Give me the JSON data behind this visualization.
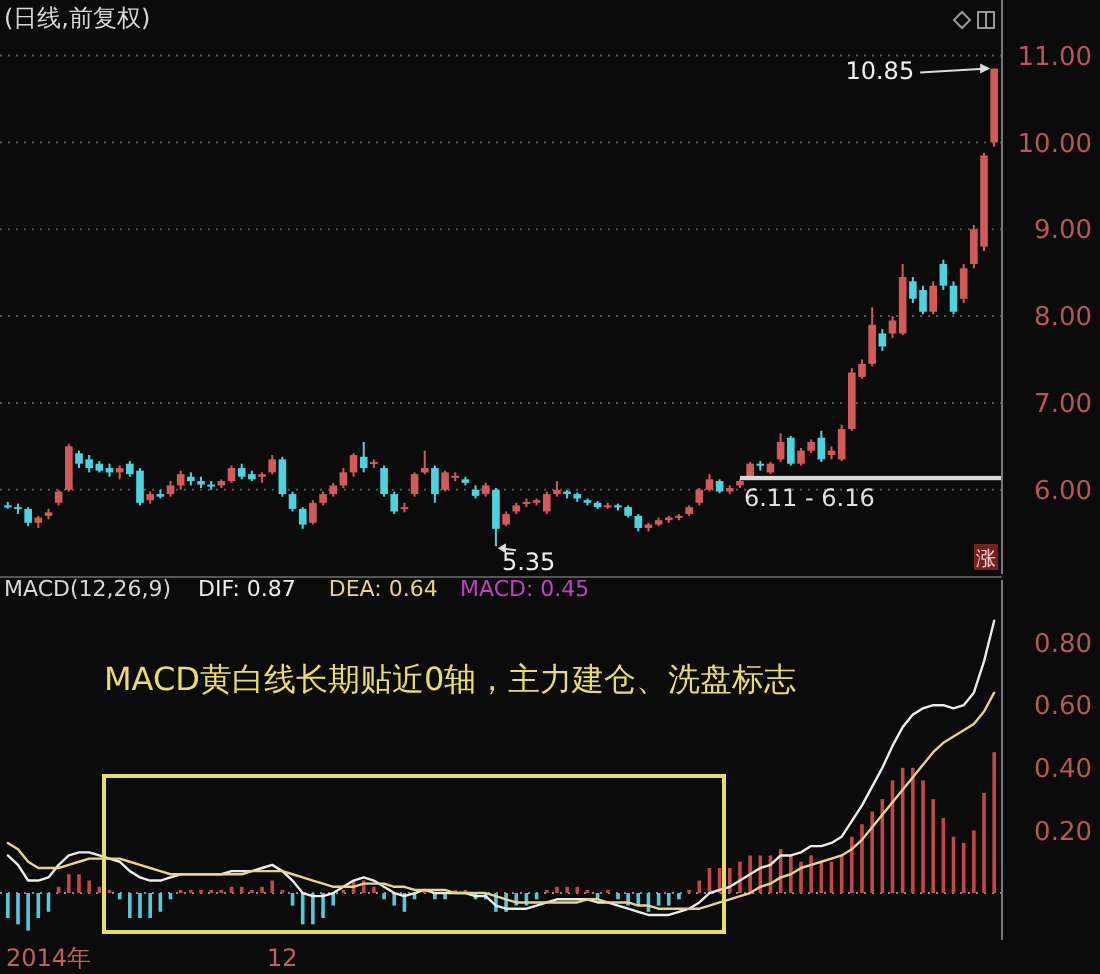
{
  "chart_data": [
    {
      "type": "candlestick",
      "title": "(日线,前复权)",
      "tick_labels": "y",
      "grid": "y",
      "categories": [
        null,
        null,
        null,
        null,
        null,
        null,
        null,
        null,
        null,
        null,
        null,
        null,
        null,
        null,
        null,
        null,
        null,
        null,
        null,
        null,
        null,
        null,
        null,
        null,
        null,
        null,
        null,
        null,
        null,
        null,
        null,
        null,
        null,
        null,
        null,
        null,
        null,
        null,
        null,
        null,
        null,
        null,
        null,
        null,
        null,
        null,
        null,
        null,
        null,
        null,
        null,
        null,
        null,
        null,
        null,
        null,
        null,
        null,
        null,
        null,
        null,
        null,
        null,
        null,
        null,
        null,
        null,
        null,
        null,
        null,
        null,
        null,
        null,
        null,
        null,
        null,
        null,
        null,
        null,
        null,
        null,
        null,
        null,
        null,
        null,
        null,
        null,
        null,
        null,
        null,
        null,
        null,
        null,
        null,
        null,
        null,
        null,
        null
      ],
      "ohlc": [
        [
          5.82,
          5.86,
          5.78,
          5.8
        ],
        [
          5.8,
          5.84,
          5.72,
          5.78
        ],
        [
          5.78,
          5.8,
          5.58,
          5.62
        ],
        [
          5.62,
          5.7,
          5.56,
          5.68
        ],
        [
          5.7,
          5.78,
          5.66,
          5.74
        ],
        [
          5.85,
          6.0,
          5.82,
          5.98
        ],
        [
          6.0,
          6.53,
          5.98,
          6.5
        ],
        [
          6.42,
          6.45,
          6.25,
          6.3
        ],
        [
          6.35,
          6.4,
          6.2,
          6.25
        ],
        [
          6.3,
          6.33,
          6.2,
          6.22
        ],
        [
          6.25,
          6.3,
          6.15,
          6.2
        ],
        [
          6.2,
          6.28,
          6.12,
          6.25
        ],
        [
          6.3,
          6.33,
          6.15,
          6.18
        ],
        [
          6.22,
          6.25,
          5.82,
          5.85
        ],
        [
          5.88,
          5.98,
          5.84,
          5.95
        ],
        [
          5.95,
          6.0,
          5.9,
          5.92
        ],
        [
          5.95,
          6.1,
          5.92,
          6.05
        ],
        [
          6.05,
          6.22,
          6.0,
          6.18
        ],
        [
          6.15,
          6.2,
          6.05,
          6.1
        ],
        [
          6.1,
          6.15,
          6.02,
          6.06
        ],
        [
          6.06,
          6.1,
          6.0,
          6.04
        ],
        [
          6.05,
          6.12,
          6.02,
          6.1
        ],
        [
          6.1,
          6.28,
          6.08,
          6.25
        ],
        [
          6.25,
          6.3,
          6.12,
          6.15
        ],
        [
          6.18,
          6.22,
          6.1,
          6.12
        ],
        [
          6.15,
          6.2,
          6.08,
          6.18
        ],
        [
          6.2,
          6.4,
          6.18,
          6.35
        ],
        [
          6.35,
          6.38,
          5.92,
          5.95
        ],
        [
          5.95,
          5.98,
          5.75,
          5.78
        ],
        [
          5.78,
          5.8,
          5.55,
          5.6
        ],
        [
          5.62,
          5.88,
          5.6,
          5.85
        ],
        [
          5.85,
          5.98,
          5.82,
          5.95
        ],
        [
          5.95,
          6.08,
          5.92,
          6.05
        ],
        [
          6.05,
          6.25,
          6.02,
          6.2
        ],
        [
          6.2,
          6.42,
          6.15,
          6.4
        ],
        [
          6.38,
          6.55,
          6.2,
          6.25
        ],
        [
          6.3,
          6.35,
          6.25,
          6.32
        ],
        [
          6.25,
          6.28,
          5.92,
          5.95
        ],
        [
          5.95,
          5.98,
          5.72,
          5.75
        ],
        [
          5.78,
          5.85,
          5.74,
          5.8
        ],
        [
          5.95,
          6.2,
          5.92,
          6.18
        ],
        [
          6.2,
          6.45,
          6.18,
          6.25
        ],
        [
          6.25,
          6.28,
          5.85,
          5.95
        ],
        [
          6.0,
          6.22,
          5.98,
          6.2
        ],
        [
          6.15,
          6.2,
          6.1,
          6.16
        ],
        [
          6.12,
          6.15,
          6.05,
          6.08
        ],
        [
          6.0,
          6.05,
          5.9,
          5.93
        ],
        [
          5.95,
          6.08,
          5.92,
          6.05
        ],
        [
          6.0,
          6.02,
          5.35,
          5.55
        ],
        [
          5.6,
          5.75,
          5.58,
          5.72
        ],
        [
          5.75,
          5.85,
          5.72,
          5.82
        ],
        [
          5.85,
          5.9,
          5.8,
          5.86
        ],
        [
          5.85,
          5.9,
          5.82,
          5.88
        ],
        [
          5.75,
          5.98,
          5.72,
          5.95
        ],
        [
          5.95,
          6.1,
          5.92,
          6.0
        ],
        [
          5.98,
          6.0,
          5.9,
          5.95
        ],
        [
          5.95,
          5.97,
          5.86,
          5.9
        ],
        [
          5.88,
          5.9,
          5.82,
          5.85
        ],
        [
          5.85,
          5.87,
          5.78,
          5.8
        ],
        [
          5.8,
          5.85,
          5.78,
          5.82
        ],
        [
          5.82,
          5.84,
          5.76,
          5.8
        ],
        [
          5.8,
          5.82,
          5.68,
          5.7
        ],
        [
          5.7,
          5.72,
          5.52,
          5.56
        ],
        [
          5.56,
          5.62,
          5.52,
          5.6
        ],
        [
          5.6,
          5.68,
          5.58,
          5.65
        ],
        [
          5.65,
          5.7,
          5.62,
          5.68
        ],
        [
          5.68,
          5.72,
          5.65,
          5.7
        ],
        [
          5.72,
          5.82,
          5.7,
          5.8
        ],
        [
          5.85,
          6.02,
          5.82,
          6.0
        ],
        [
          6.0,
          6.18,
          5.98,
          6.12
        ],
        [
          6.1,
          6.12,
          5.96,
          5.98
        ],
        [
          5.98,
          6.05,
          5.95,
          6.02
        ],
        [
          6.05,
          6.12,
          6.02,
          6.1
        ],
        [
          6.15,
          6.32,
          6.12,
          6.3
        ],
        [
          6.3,
          6.33,
          6.22,
          6.28
        ],
        [
          6.2,
          6.32,
          6.18,
          6.3
        ],
        [
          6.35,
          6.65,
          6.32,
          6.55
        ],
        [
          6.6,
          6.62,
          6.28,
          6.3
        ],
        [
          6.3,
          6.48,
          6.28,
          6.45
        ],
        [
          6.45,
          6.58,
          6.42,
          6.55
        ],
        [
          6.6,
          6.68,
          6.32,
          6.35
        ],
        [
          6.4,
          6.5,
          6.35,
          6.45
        ],
        [
          6.35,
          6.75,
          6.33,
          6.7
        ],
        [
          6.7,
          7.4,
          6.68,
          7.35
        ],
        [
          7.3,
          7.5,
          7.28,
          7.45
        ],
        [
          7.45,
          8.1,
          7.42,
          7.9
        ],
        [
          7.8,
          7.85,
          7.6,
          7.65
        ],
        [
          7.8,
          8.0,
          7.75,
          7.95
        ],
        [
          7.8,
          8.6,
          7.78,
          8.45
        ],
        [
          8.4,
          8.45,
          8.15,
          8.2
        ],
        [
          8.3,
          8.35,
          8.02,
          8.05
        ],
        [
          8.05,
          8.4,
          8.02,
          8.35
        ],
        [
          8.6,
          8.65,
          8.3,
          8.35
        ],
        [
          8.35,
          8.4,
          8.02,
          8.05
        ],
        [
          8.2,
          8.6,
          8.15,
          8.55
        ],
        [
          8.6,
          9.05,
          8.55,
          9.0
        ],
        [
          8.8,
          9.88,
          8.75,
          9.85
        ],
        [
          10.0,
          10.85,
          9.95,
          10.85
        ]
      ],
      "colors": [
        "#4fd2e0",
        "#4fd2e0",
        "#4fd2e0",
        "#d25a5a",
        "#d25a5a",
        "#d25a5a",
        "#d25a5a",
        "#4fd2e0",
        "#4fd2e0",
        "#4fd2e0",
        "#4fd2e0",
        "#d25a5a",
        "#4fd2e0",
        "#4fd2e0",
        "#d25a5a",
        "#4fd2e0",
        "#d25a5a",
        "#d25a5a",
        "#4fd2e0",
        "#4fd2e0",
        "#4fd2e0",
        "#d25a5a",
        "#d25a5a",
        "#4fd2e0",
        "#4fd2e0",
        "#d25a5a",
        "#d25a5a",
        "#4fd2e0",
        "#4fd2e0",
        "#4fd2e0",
        "#d25a5a",
        "#d25a5a",
        "#d25a5a",
        "#d25a5a",
        "#d25a5a",
        "#4fd2e0",
        "#d25a5a",
        "#4fd2e0",
        "#4fd2e0",
        "#d25a5a",
        "#d25a5a",
        "#d25a5a",
        "#4fd2e0",
        "#d25a5a",
        "#d25a5a",
        "#4fd2e0",
        "#4fd2e0",
        "#d25a5a",
        "#4fd2e0",
        "#d25a5a",
        "#d25a5a",
        "#d25a5a",
        "#d25a5a",
        "#d25a5a",
        "#d25a5a",
        "#4fd2e0",
        "#4fd2e0",
        "#4fd2e0",
        "#4fd2e0",
        "#d25a5a",
        "#4fd2e0",
        "#4fd2e0",
        "#4fd2e0",
        "#d25a5a",
        "#d25a5a",
        "#d25a5a",
        "#d25a5a",
        "#d25a5a",
        "#d25a5a",
        "#d25a5a",
        "#4fd2e0",
        "#d25a5a",
        "#d25a5a",
        "#d25a5a",
        "#4fd2e0",
        "#d25a5a",
        "#d25a5a",
        "#4fd2e0",
        "#d25a5a",
        "#d25a5a",
        "#4fd2e0",
        "#d25a5a",
        "#d25a5a",
        "#d25a5a",
        "#d25a5a",
        "#d25a5a",
        "#4fd2e0",
        "#d25a5a",
        "#d25a5a",
        "#4fd2e0",
        "#4fd2e0",
        "#d25a5a",
        "#4fd2e0",
        "#4fd2e0",
        "#d25a5a",
        "#d25a5a",
        "#d25a5a",
        "#d25a5a"
      ],
      "ylim": [
        5.03,
        11.64
      ],
      "yticks": [
        {
          "value": 6,
          "label": "6.00"
        },
        {
          "value": 7,
          "label": "7.00"
        },
        {
          "value": 8,
          "label": "8.00"
        },
        {
          "value": 9,
          "label": "9.00"
        },
        {
          "value": 10,
          "label": "10.00"
        },
        {
          "value": 11,
          "label": "11.00"
        }
      ],
      "bands": [
        {
          "axis": "y",
          "from": 6.11,
          "to": 6.16,
          "label": "6.11 - 6.16",
          "color": "#d8d8d8"
        }
      ],
      "annotations": [
        "10.85",
        "5.35",
        "涨"
      ]
    },
    {
      "type": "line",
      "title": "MACD(12,26,9)",
      "categories": [
        null,
        null,
        null,
        null,
        "2014年",
        null,
        null,
        null,
        null,
        null,
        null,
        null,
        null,
        null,
        null,
        null,
        null,
        null,
        null,
        null,
        null,
        null,
        null,
        null,
        null,
        null,
        null,
        "12",
        null,
        null,
        null,
        null,
        null,
        null,
        null,
        null,
        null,
        null,
        null,
        null,
        null,
        null,
        null,
        null,
        null,
        null,
        null,
        null,
        null,
        null,
        null,
        null,
        null,
        null,
        null,
        null,
        null,
        null,
        null,
        null,
        null,
        null,
        null,
        null,
        null,
        null,
        null,
        null,
        null,
        null,
        null,
        null,
        null,
        null,
        null,
        null,
        null,
        null,
        null,
        null,
        null,
        null,
        null,
        null,
        null,
        null,
        null,
        null,
        null,
        null,
        null,
        null,
        null,
        null,
        null,
        null,
        null,
        null
      ],
      "ylim": [
        -0.15,
        1.0
      ],
      "yticks": [
        {
          "value": 0.2,
          "label": "0.20"
        },
        {
          "value": 0.4,
          "label": "0.40"
        },
        {
          "value": 0.6,
          "label": "0.60"
        },
        {
          "value": 0.8,
          "label": "0.80"
        }
      ],
      "ref_lines": [
        {
          "axis": "y",
          "value": 0,
          "color": "#8a8a8a",
          "line_style": "dotted"
        }
      ],
      "annotations": [
        "MACD: 0.45",
        "MACD黄白线长期贴近0轴，主力建仓、洗盘标志"
      ],
      "series": [
        {
          "type": "bar",
          "values": [
            -0.08,
            -0.1,
            -0.12,
            -0.08,
            -0.06,
            0.02,
            0.06,
            0.06,
            0.04,
            0.02,
            0.01,
            -0.02,
            -0.08,
            -0.08,
            -0.08,
            -0.06,
            -0.02,
            0.01,
            0.01,
            0.01,
            0.01,
            0.01,
            0.02,
            0.02,
            0.01,
            0.02,
            0.04,
            0.01,
            -0.04,
            -0.1,
            -0.1,
            -0.08,
            -0.04,
            0.01,
            0.04,
            0.04,
            0.02,
            -0.02,
            -0.04,
            -0.06,
            -0.02,
            0.01,
            -0.02,
            -0.02,
            0.01,
            0.01,
            -0.02,
            -0.02,
            -0.06,
            -0.06,
            -0.04,
            -0.04,
            -0.02,
            0.01,
            0.02,
            0.02,
            0.02,
            0.01,
            -0.02,
            0.01,
            -0.02,
            -0.04,
            -0.04,
            -0.06,
            -0.04,
            -0.04,
            -0.02,
            0.01,
            0.04,
            0.08,
            0.08,
            0.08,
            0.1,
            0.12,
            0.12,
            0.12,
            0.14,
            0.12,
            0.1,
            0.12,
            0.1,
            0.1,
            0.12,
            0.18,
            0.22,
            0.26,
            0.3,
            0.36,
            0.4,
            0.4,
            0.36,
            0.3,
            0.24,
            0.18,
            0.16,
            0.2,
            0.32,
            0.45
          ],
          "colors": [
            "#58c8d8",
            "#58c8d8",
            "#58c8d8",
            "#58c8d8",
            "#58c8d8",
            "#c04848",
            "#c04848",
            "#c04848",
            "#c04848",
            "#c04848",
            "#c04848",
            "#58c8d8",
            "#58c8d8",
            "#58c8d8",
            "#58c8d8",
            "#58c8d8",
            "#58c8d8",
            "#c04848",
            "#c04848",
            "#c04848",
            "#c04848",
            "#c04848",
            "#c04848",
            "#c04848",
            "#c04848",
            "#c04848",
            "#c04848",
            "#c04848",
            "#58c8d8",
            "#58c8d8",
            "#58c8d8",
            "#58c8d8",
            "#58c8d8",
            "#c04848",
            "#c04848",
            "#c04848",
            "#c04848",
            "#58c8d8",
            "#58c8d8",
            "#58c8d8",
            "#58c8d8",
            "#c04848",
            "#58c8d8",
            "#58c8d8",
            "#c04848",
            "#c04848",
            "#58c8d8",
            "#58c8d8",
            "#58c8d8",
            "#58c8d8",
            "#58c8d8",
            "#58c8d8",
            "#58c8d8",
            "#c04848",
            "#c04848",
            "#c04848",
            "#c04848",
            "#c04848",
            "#58c8d8",
            "#c04848",
            "#58c8d8",
            "#58c8d8",
            "#58c8d8",
            "#58c8d8",
            "#58c8d8",
            "#58c8d8",
            "#58c8d8",
            "#c04848",
            "#c04848",
            "#c04848",
            "#c04848",
            "#c04848",
            "#c04848",
            "#c04848",
            "#c04848",
            "#c04848",
            "#c04848",
            "#c04848",
            "#c04848",
            "#c04848",
            "#c04848",
            "#c04848",
            "#c04848",
            "#c04848",
            "#c04848",
            "#c04848",
            "#c04848",
            "#c04848",
            "#c04848",
            "#c04848",
            "#c04848",
            "#c04848",
            "#c04848",
            "#c04848",
            "#c04848",
            "#c04848",
            "#c04848",
            "#c04848"
          ]
        },
        {
          "name": "DIF: 0.87",
          "type": "line",
          "color": "#ececec",
          "values": [
            0.12,
            0.09,
            0.04,
            0.04,
            0.05,
            0.09,
            0.12,
            0.13,
            0.13,
            0.12,
            0.11,
            0.1,
            0.07,
            0.05,
            0.04,
            0.04,
            0.05,
            0.06,
            0.06,
            0.06,
            0.06,
            0.06,
            0.07,
            0.07,
            0.07,
            0.08,
            0.09,
            0.07,
            0.04,
            0.0,
            -0.01,
            -0.01,
            0.0,
            0.02,
            0.04,
            0.05,
            0.04,
            0.02,
            0.0,
            -0.01,
            0.0,
            0.01,
            0.0,
            0.0,
            0.0,
            0.0,
            -0.01,
            -0.01,
            -0.04,
            -0.05,
            -0.05,
            -0.05,
            -0.04,
            -0.03,
            -0.02,
            -0.02,
            -0.02,
            -0.02,
            -0.03,
            -0.03,
            -0.04,
            -0.05,
            -0.06,
            -0.07,
            -0.07,
            -0.07,
            -0.06,
            -0.05,
            -0.03,
            0.0,
            0.01,
            0.02,
            0.04,
            0.06,
            0.08,
            0.09,
            0.12,
            0.12,
            0.13,
            0.15,
            0.15,
            0.16,
            0.18,
            0.23,
            0.28,
            0.34,
            0.4,
            0.47,
            0.53,
            0.57,
            0.59,
            0.6,
            0.6,
            0.59,
            0.6,
            0.64,
            0.74,
            0.87
          ]
        },
        {
          "name": "DEA: 0.64",
          "type": "line",
          "color": "#e6d48c",
          "values": [
            0.16,
            0.14,
            0.1,
            0.08,
            0.08,
            0.08,
            0.09,
            0.1,
            0.11,
            0.11,
            0.11,
            0.11,
            0.1,
            0.09,
            0.08,
            0.07,
            0.06,
            0.06,
            0.06,
            0.06,
            0.06,
            0.06,
            0.06,
            0.06,
            0.07,
            0.07,
            0.07,
            0.07,
            0.06,
            0.05,
            0.04,
            0.03,
            0.02,
            0.02,
            0.02,
            0.03,
            0.03,
            0.03,
            0.02,
            0.02,
            0.01,
            0.01,
            0.01,
            0.01,
            0.0,
            0.0,
            0.0,
            0.0,
            -0.01,
            -0.02,
            -0.03,
            -0.03,
            -0.03,
            -0.03,
            -0.03,
            -0.03,
            -0.03,
            -0.02,
            -0.02,
            -0.03,
            -0.03,
            -0.03,
            -0.04,
            -0.04,
            -0.05,
            -0.05,
            -0.05,
            -0.05,
            -0.05,
            -0.04,
            -0.03,
            -0.02,
            -0.01,
            0.0,
            0.02,
            0.03,
            0.05,
            0.06,
            0.08,
            0.09,
            0.1,
            0.11,
            0.12,
            0.14,
            0.17,
            0.21,
            0.25,
            0.29,
            0.33,
            0.37,
            0.41,
            0.45,
            0.48,
            0.5,
            0.52,
            0.54,
            0.58,
            0.64
          ]
        }
      ]
    }
  ]
}
